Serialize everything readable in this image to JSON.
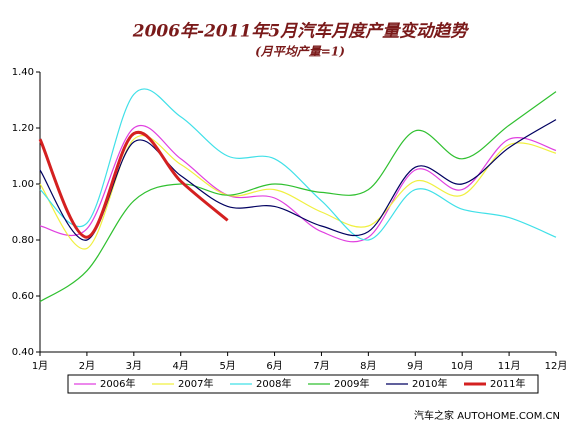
{
  "chart_data": {
    "type": "line",
    "title": "2006年-2011年5月汽车月度产量变动趋势",
    "subtitle": "(月平均产量=1)",
    "categories": [
      "1月",
      "2月",
      "3月",
      "4月",
      "5月",
      "6月",
      "7月",
      "8月",
      "9月",
      "10月",
      "11月",
      "12月"
    ],
    "series": [
      {
        "name": "2006年",
        "color": "#e040e0",
        "values": [
          0.85,
          0.84,
          1.2,
          1.09,
          0.96,
          0.95,
          0.83,
          0.81,
          1.05,
          0.98,
          1.16,
          1.12
        ]
      },
      {
        "name": "2007年",
        "color": "#f0f040",
        "values": [
          1.0,
          0.77,
          1.16,
          1.07,
          0.96,
          0.98,
          0.9,
          0.85,
          1.01,
          0.96,
          1.14,
          1.11
        ]
      },
      {
        "name": "2008年",
        "color": "#40e0e8",
        "values": [
          0.98,
          0.86,
          1.32,
          1.24,
          1.1,
          1.09,
          0.94,
          0.8,
          0.98,
          0.91,
          0.88,
          0.81
        ]
      },
      {
        "name": "2009年",
        "color": "#30c030",
        "values": [
          0.58,
          0.69,
          0.94,
          1.0,
          0.96,
          1.0,
          0.97,
          0.98,
          1.19,
          1.09,
          1.21,
          1.33
        ]
      },
      {
        "name": "2010年",
        "color": "#000060",
        "values": [
          1.05,
          0.8,
          1.15,
          1.03,
          0.92,
          0.92,
          0.85,
          0.83,
          1.06,
          1.0,
          1.13,
          1.23
        ]
      },
      {
        "name": "2011年",
        "color": "#d42020",
        "values": [
          1.16,
          0.81,
          1.18,
          1.01,
          0.87,
          null,
          null,
          null,
          null,
          null,
          null,
          null
        ]
      }
    ],
    "ylim": [
      0.4,
      1.4
    ],
    "yticks": [
      {
        "value": 0.4,
        "label": "0.40"
      },
      {
        "value": 0.6,
        "label": "0.60"
      },
      {
        "value": 0.8,
        "label": "0.80"
      },
      {
        "value": 1.0,
        "label": "1.00"
      },
      {
        "value": 1.2,
        "label": "1.20"
      },
      {
        "value": 1.4,
        "label": "1.40"
      }
    ],
    "footer": "汽车之家 AUTOHOME.COM.CN"
  }
}
